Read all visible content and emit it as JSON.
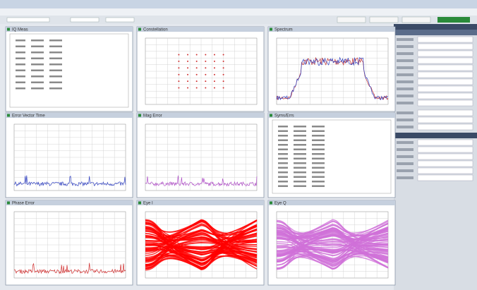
{
  "panels": [
    {
      "title": "IQ Meas",
      "kind": "summary"
    },
    {
      "title": "Constellation",
      "kind": "constellation"
    },
    {
      "title": "Spectrum",
      "kind": "spectrum"
    },
    {
      "title": "Error Vector Time",
      "kind": "trace",
      "color": "#3040c0"
    },
    {
      "title": "Mag Error",
      "kind": "trace",
      "color": "#b050c8"
    },
    {
      "title": "Syms/Errs",
      "kind": "table"
    },
    {
      "title": "Phase Error",
      "kind": "trace",
      "color": "#d03030"
    },
    {
      "title": "Eye I",
      "kind": "eye",
      "color": "#ff0000"
    },
    {
      "title": "Eye Q",
      "kind": "eye",
      "color": "#d070d8"
    }
  ]
}
